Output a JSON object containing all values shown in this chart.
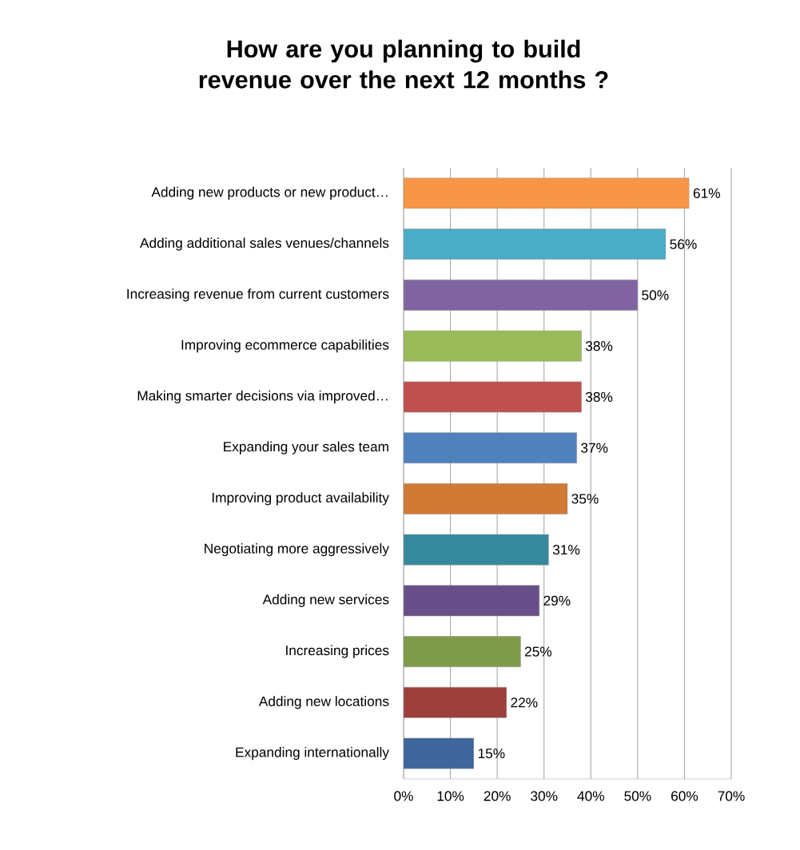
{
  "chart_data": {
    "type": "bar",
    "orientation": "horizontal",
    "title": "How are you planning to build revenue over the next 12 months ?",
    "categories": [
      "Adding new products or new product…",
      "Adding additional sales venues/channels",
      "Increasing revenue from current customers",
      "Improving ecommerce capabilities",
      "Making smarter decisions via improved…",
      "Expanding your sales team",
      "Improving product availability",
      "Negotiating more aggressively",
      "Adding new services",
      "Increasing prices",
      "Adding new locations",
      "Expanding internationally"
    ],
    "values": [
      61,
      56,
      50,
      38,
      38,
      37,
      35,
      31,
      29,
      25,
      22,
      15
    ],
    "value_labels": [
      "61%",
      "56%",
      "50%",
      "38%",
      "38%",
      "37%",
      "35%",
      "31%",
      "29%",
      "25%",
      "22%",
      "15%"
    ],
    "colors": [
      "#f79646",
      "#4bacc6",
      "#8064a2",
      "#9bbb59",
      "#c0504d",
      "#4f81bd",
      "#d07a35",
      "#36899c",
      "#684f8a",
      "#7f9a48",
      "#9d3f3d",
      "#3e669b"
    ],
    "xlim": [
      0,
      70
    ],
    "xticks": [
      {
        "value": 0,
        "label": "0%"
      },
      {
        "value": 10,
        "label": "10%"
      },
      {
        "value": 20,
        "label": "20%"
      },
      {
        "value": 30,
        "label": "30%"
      },
      {
        "value": 40,
        "label": "40%"
      },
      {
        "value": 50,
        "label": "50%"
      },
      {
        "value": 60,
        "label": "60%"
      },
      {
        "value": 70,
        "label": "70%"
      }
    ],
    "grid": "x"
  }
}
